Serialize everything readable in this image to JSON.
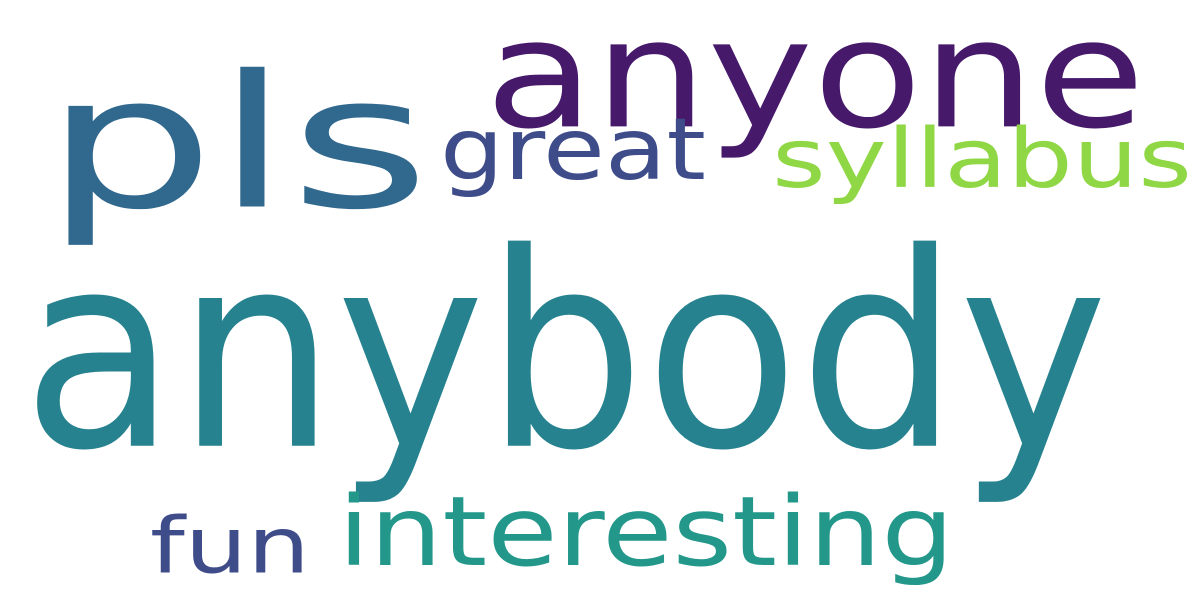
{
  "words": [
    {
      "id": "pls",
      "text": "pls",
      "color": "#31688e"
    },
    {
      "id": "anyone",
      "text": "anyone",
      "color": "#46196b"
    },
    {
      "id": "great",
      "text": "great",
      "color": "#3f4c8a"
    },
    {
      "id": "syllabus",
      "text": "syllabus",
      "color": "#8fd744"
    },
    {
      "id": "anybody",
      "text": "anybody",
      "color": "#26828e"
    },
    {
      "id": "fun",
      "text": "fun",
      "color": "#3f4c8a"
    },
    {
      "id": "interesting",
      "text": "interesting",
      "color": "#22978a"
    }
  ]
}
